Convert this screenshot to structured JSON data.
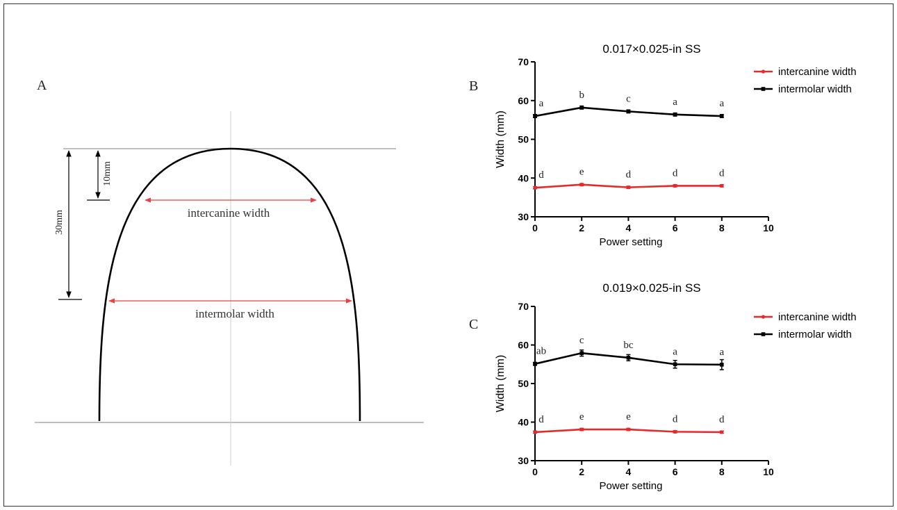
{
  "panels": {
    "a": {
      "letter": "A",
      "dim_10": "10mm",
      "dim_30": "30mm",
      "intercanine_label": "intercanine width",
      "intermolar_label": "intermolar width",
      "arrow_color": "#e8413f"
    },
    "b": {
      "letter": "B"
    },
    "c": {
      "letter": "C"
    }
  },
  "colors": {
    "intercanine": "#e32b2b",
    "intermolar": "#000000"
  },
  "chart_data": [
    {
      "type": "line",
      "title": "0.017×0.025-in SS",
      "xlabel": "Power setting",
      "ylabel": "Width (mm)",
      "xlim": [
        0,
        10
      ],
      "ylim": [
        30,
        70
      ],
      "xticks": [
        0,
        2,
        4,
        6,
        8,
        10
      ],
      "yticks": [
        30,
        40,
        50,
        60,
        70
      ],
      "legend_position": "top-right",
      "x": [
        0,
        2,
        4,
        6,
        8
      ],
      "series": [
        {
          "name": "intercanine width",
          "values": [
            37.5,
            38.3,
            37.6,
            38.0,
            38.0
          ],
          "errors": [
            0.3,
            0.3,
            0.3,
            0.3,
            0.3
          ],
          "letters": [
            "d",
            "e",
            "d",
            "d",
            "d"
          ]
        },
        {
          "name": "intermolar width",
          "values": [
            56.0,
            58.2,
            57.2,
            56.4,
            56.0
          ],
          "errors": [
            0.4,
            0.4,
            0.4,
            0.4,
            0.4
          ],
          "letters": [
            "a",
            "b",
            "c",
            "a",
            "a"
          ]
        }
      ]
    },
    {
      "type": "line",
      "title": "0.019×0.025-in SS",
      "xlabel": "Power setting",
      "ylabel": "Width (mm)",
      "xlim": [
        0,
        10
      ],
      "ylim": [
        30,
        70
      ],
      "xticks": [
        0,
        2,
        4,
        6,
        8,
        10
      ],
      "yticks": [
        30,
        40,
        50,
        60,
        70
      ],
      "legend_position": "top-right",
      "x": [
        0,
        2,
        4,
        6,
        8
      ],
      "series": [
        {
          "name": "intercanine width",
          "values": [
            37.4,
            38.1,
            38.1,
            37.5,
            37.4
          ],
          "errors": [
            0.3,
            0.3,
            0.3,
            0.3,
            0.3
          ],
          "letters": [
            "d",
            "e",
            "e",
            "d",
            "d"
          ]
        },
        {
          "name": "intermolar width",
          "values": [
            55.1,
            57.9,
            56.7,
            55.0,
            54.9
          ],
          "errors": [
            0.4,
            0.8,
            0.8,
            1.0,
            1.3
          ],
          "letters": [
            "ab",
            "c",
            "bc",
            "a",
            "a"
          ]
        }
      ]
    }
  ]
}
